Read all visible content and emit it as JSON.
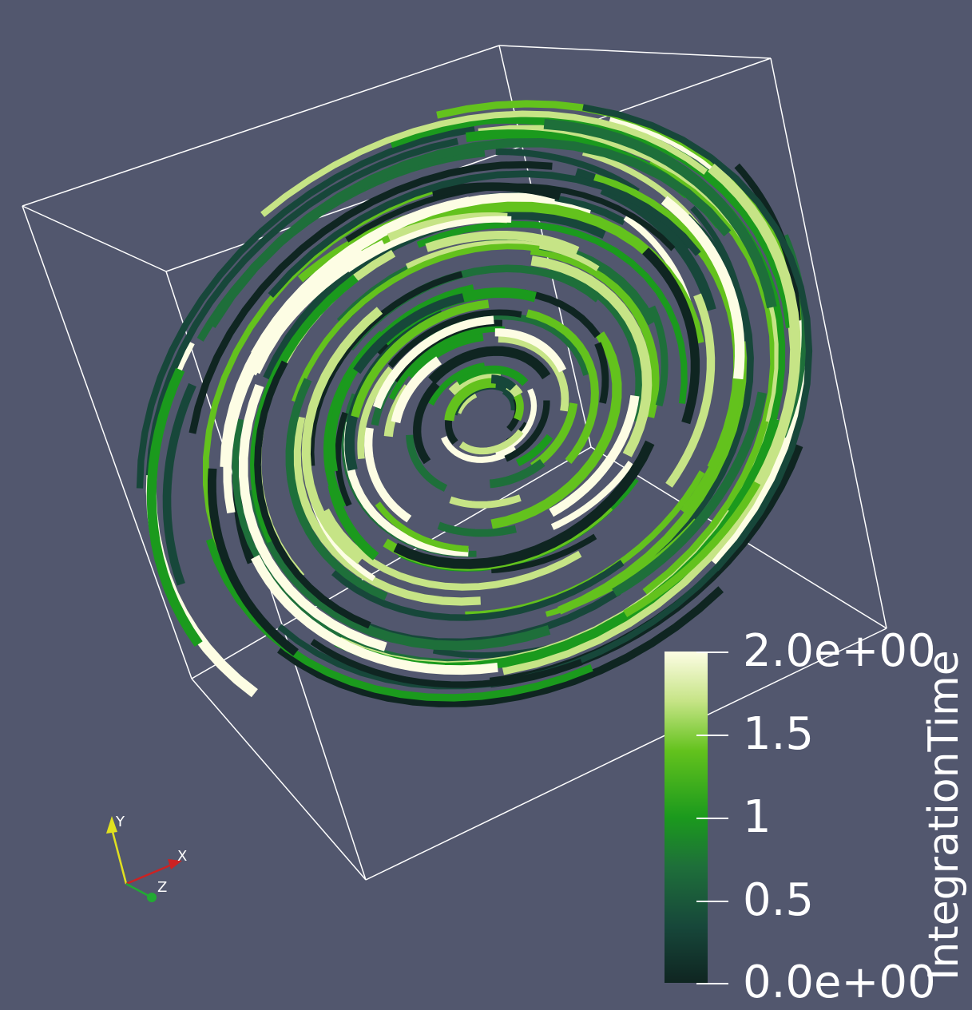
{
  "scalar_bar": {
    "title": "IntegrationTime",
    "tick_labels": [
      "2.0e+00",
      "1.5",
      "1",
      "0.5",
      "0.0e+00"
    ],
    "range": [
      0,
      2
    ],
    "colormap": [
      "#0f2521",
      "#17473a",
      "#1e6f3a",
      "#1b9a1d",
      "#63c21d",
      "#c6e486",
      "#fdfde4"
    ]
  },
  "orientation_axes": {
    "x_label": "X",
    "y_label": "Y",
    "z_label": "Z",
    "x_color": "#cc2222",
    "y_color": "#e0e020",
    "z_color": "#22aa33"
  },
  "scene": {
    "background": "#52576e",
    "outline_color": "#ffffff"
  }
}
